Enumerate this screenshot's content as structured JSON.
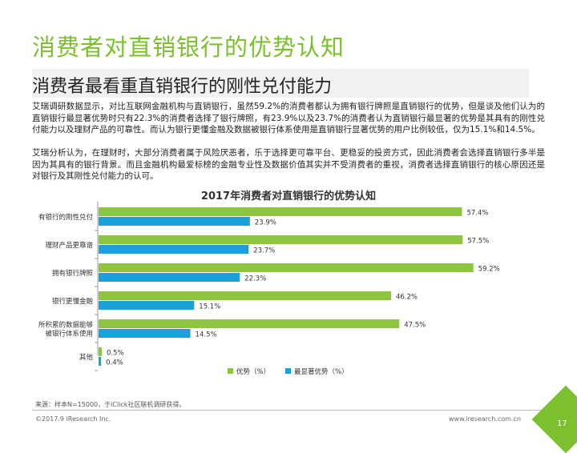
{
  "page": {
    "title": "消费者对直销银行的优势认知",
    "subtitle": "消费者最看重直销银行的刚性兑付能力",
    "paragraph1": "艾瑞调研数据显示，对比互联网金融机构与直销银行，虽然59.2%的消费者都认为拥有银行牌照是直销银行的优势，但是谈及他们认为的直销银行最显著优势时只有22.3%的消费者选择了银行牌照，有23.9%以及23.7%的消费者认为直销银行最显著的优势是其具有的刚性兑付能力以及理财产品的可靠性。而认为银行更懂金融及数据被银行体系使用是直销银行显著优势的用户比例较低，仅为15.1%和14.5%。",
    "paragraph2": "艾瑞分析认为，在理财时，大部分消费者属于风险厌恶者，乐于选择更可靠平台、更稳妥的投资方式，因此消费者会选择直销银行多半是因为其具有的银行背景。而且金融机构最爱标榜的金融专业性及数据价值其实并不受消费者的重视，消费者选择直销银行的核心原因还是对银行及其刚性兑付能力的认可。",
    "source": "来源：样本N=15000，于iClick社区联机调研获得。",
    "copyright": "©2017.9 iResearch Inc.",
    "website": "www.iresearch.com.cn",
    "page_number": "17"
  },
  "colors": {
    "brand": "#7cc02e",
    "series1": "#8cc63f",
    "series2": "#1aa1dc"
  },
  "chart_data": {
    "type": "bar",
    "orientation": "horizontal",
    "title": "2017年消费者对直销银行的优势认知",
    "categories": [
      [
        "有银行的刚性兑付"
      ],
      [
        "理财产品更靠谱"
      ],
      [
        "拥有银行牌照"
      ],
      [
        "银行更懂金融"
      ],
      [
        "所积累的数据能够",
        "被银行体系使用"
      ],
      [
        "其他"
      ]
    ],
    "series": [
      {
        "name": "优势（%）",
        "values": [
          57.4,
          57.5,
          59.2,
          46.2,
          47.5,
          0.5
        ],
        "labels": [
          "57.4%",
          "57.5%",
          "59.2%",
          "46.2%",
          "47.5%",
          "0.5%"
        ]
      },
      {
        "name": "最显著优势（%）",
        "values": [
          23.9,
          23.7,
          22.3,
          15.1,
          14.5,
          0.4
        ],
        "labels": [
          "23.9%",
          "23.7%",
          "22.3%",
          "15.1%",
          "14.5%",
          "0.4%"
        ]
      }
    ],
    "xlim": [
      0,
      70
    ],
    "legend": "bottom"
  }
}
